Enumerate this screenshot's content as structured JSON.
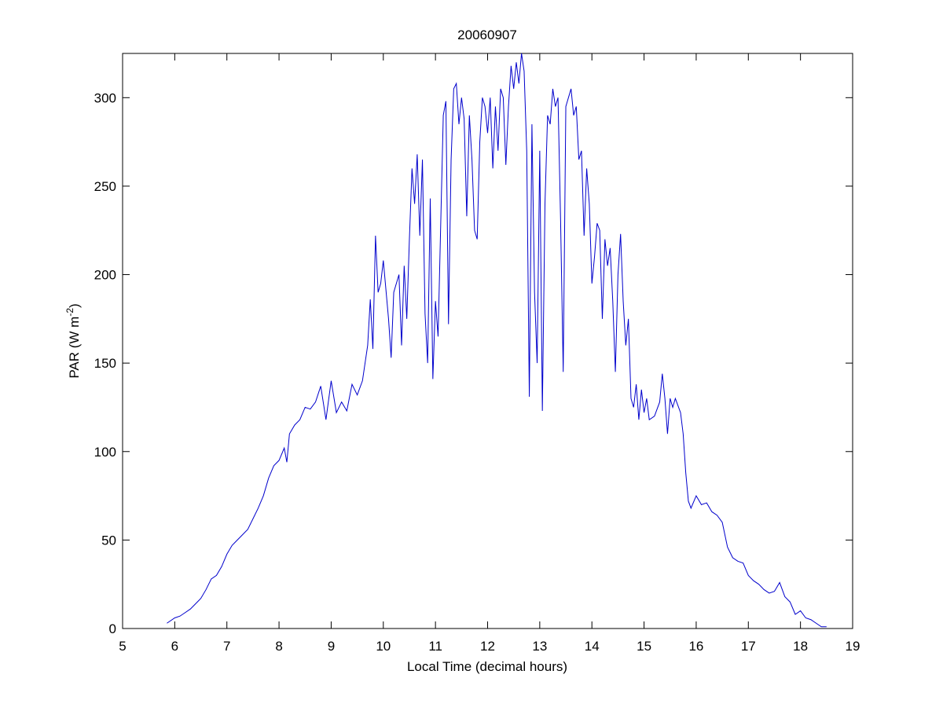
{
  "chart_data": {
    "type": "line",
    "title": "20060907",
    "xlabel": "Local Time (decimal hours)",
    "ylabel": [
      "PAR (W m",
      "-2",
      ")"
    ],
    "x": [
      5.85,
      5.9,
      6.0,
      6.1,
      6.2,
      6.3,
      6.4,
      6.5,
      6.6,
      6.7,
      6.8,
      6.9,
      7.0,
      7.1,
      7.2,
      7.3,
      7.4,
      7.5,
      7.6,
      7.7,
      7.8,
      7.9,
      8.0,
      8.1,
      8.15,
      8.2,
      8.3,
      8.4,
      8.5,
      8.6,
      8.7,
      8.8,
      8.9,
      9.0,
      9.1,
      9.2,
      9.3,
      9.4,
      9.5,
      9.6,
      9.7,
      9.75,
      9.8,
      9.85,
      9.9,
      9.95,
      10.0,
      10.1,
      10.15,
      10.2,
      10.3,
      10.35,
      10.4,
      10.45,
      10.5,
      10.55,
      10.6,
      10.65,
      10.7,
      10.75,
      10.8,
      10.85,
      10.9,
      10.95,
      11.0,
      11.05,
      11.15,
      11.2,
      11.25,
      11.3,
      11.35,
      11.4,
      11.45,
      11.5,
      11.55,
      11.6,
      11.65,
      11.7,
      11.75,
      11.8,
      11.85,
      11.9,
      11.95,
      12.0,
      12.05,
      12.1,
      12.15,
      12.2,
      12.25,
      12.3,
      12.35,
      12.4,
      12.45,
      12.5,
      12.55,
      12.6,
      12.65,
      12.7,
      12.75,
      12.8,
      12.85,
      12.9,
      12.95,
      13.0,
      13.05,
      13.1,
      13.15,
      13.2,
      13.25,
      13.3,
      13.35,
      13.4,
      13.45,
      13.5,
      13.55,
      13.6,
      13.65,
      13.7,
      13.75,
      13.8,
      13.85,
      13.9,
      13.95,
      14.0,
      14.05,
      14.1,
      14.15,
      14.2,
      14.25,
      14.3,
      14.35,
      14.4,
      14.45,
      14.5,
      14.55,
      14.6,
      14.65,
      14.7,
      14.75,
      14.8,
      14.85,
      14.9,
      14.95,
      15.0,
      15.05,
      15.1,
      15.2,
      15.3,
      15.35,
      15.4,
      15.45,
      15.5,
      15.55,
      15.6,
      15.7,
      15.75,
      15.8,
      15.85,
      15.9,
      16.0,
      16.1,
      16.2,
      16.3,
      16.4,
      16.5,
      16.6,
      16.7,
      16.8,
      16.9,
      17.0,
      17.1,
      17.2,
      17.3,
      17.4,
      17.5,
      17.6,
      17.7,
      17.8,
      17.9,
      18.0,
      18.1,
      18.2,
      18.3,
      18.4,
      18.5
    ],
    "series": [
      {
        "color": "#0000cc",
        "values": [
          3,
          4,
          6,
          7,
          9,
          11,
          14,
          17,
          22,
          28,
          30,
          35,
          42,
          47,
          50,
          53,
          56,
          62,
          68,
          75,
          85,
          92,
          95,
          102,
          94,
          110,
          115,
          118,
          125,
          124,
          128,
          137,
          118,
          140,
          122,
          128,
          123,
          138,
          132,
          140,
          160,
          186,
          158,
          222,
          190,
          195,
          208,
          175,
          153,
          190,
          200,
          160,
          205,
          175,
          220,
          260,
          240,
          268,
          222,
          265,
          178,
          150,
          243,
          141,
          185,
          165,
          290,
          298,
          172,
          265,
          305,
          308,
          285,
          300,
          288,
          233,
          290,
          265,
          225,
          220,
          275,
          300,
          295,
          280,
          300,
          260,
          295,
          270,
          305,
          300,
          262,
          295,
          318,
          305,
          320,
          308,
          325,
          315,
          270,
          131,
          285,
          190,
          150,
          270,
          123,
          240,
          290,
          285,
          305,
          295,
          300,
          230,
          145,
          295,
          300,
          305,
          290,
          295,
          265,
          270,
          222,
          260,
          240,
          195,
          210,
          229,
          225,
          175,
          220,
          205,
          215,
          185,
          145,
          200,
          223,
          185,
          160,
          175,
          130,
          125,
          138,
          118,
          135,
          122,
          130,
          118,
          120,
          128,
          144,
          130,
          110,
          130,
          125,
          130,
          122,
          110,
          88,
          72,
          68,
          75,
          70,
          71,
          66,
          64,
          60,
          46,
          40,
          38,
          37,
          30,
          27,
          25,
          22,
          20,
          21,
          26,
          18,
          15,
          8,
          10,
          6,
          5,
          3,
          1,
          1
        ]
      }
    ],
    "xlim": [
      5,
      19
    ],
    "xticks": [
      5,
      6,
      7,
      8,
      9,
      10,
      11,
      12,
      13,
      14,
      15,
      16,
      17,
      18,
      19
    ],
    "ylim": [
      0,
      325
    ],
    "yticks": [
      0,
      50,
      100,
      150,
      200,
      250,
      300
    ],
    "grid": false
  }
}
